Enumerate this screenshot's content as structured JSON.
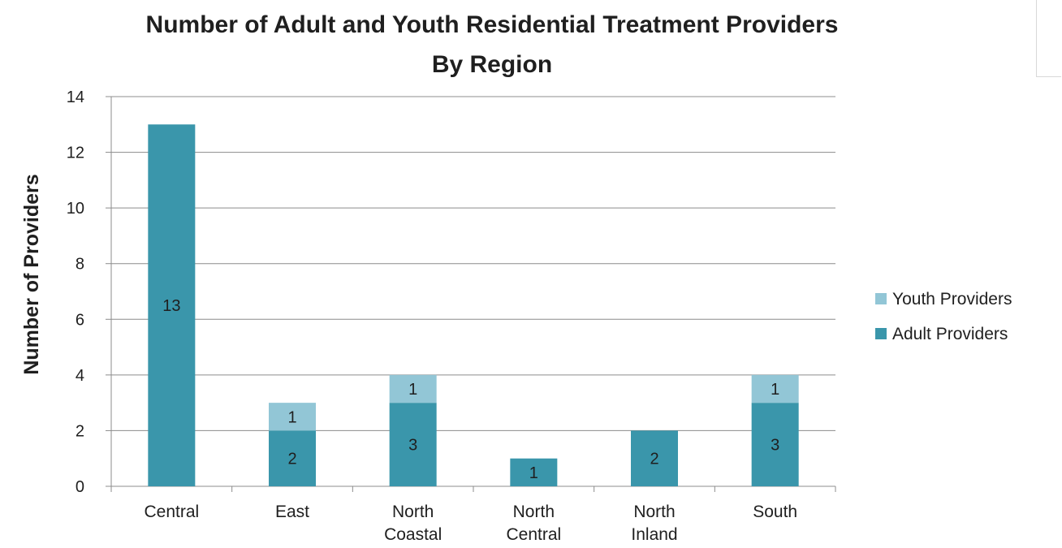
{
  "chart_data": {
    "type": "bar",
    "stacked": true,
    "title": "Number of Adult and Youth Residential Treatment Providers",
    "subtitle": "By Region",
    "xlabel": "",
    "ylabel": "Number of Providers",
    "ylim": [
      0,
      14
    ],
    "yticks": [
      "0",
      "2",
      "4",
      "6",
      "8",
      "10",
      "12",
      "14"
    ],
    "grid": true,
    "legend_position": "right",
    "categories": [
      [
        "Central"
      ],
      [
        "East"
      ],
      [
        "North",
        "Coastal"
      ],
      [
        "North",
        "Central"
      ],
      [
        "North",
        "Inland"
      ],
      [
        "South"
      ]
    ],
    "series": [
      {
        "name": "Adult Providers",
        "color": "#3a96ab",
        "values": [
          13,
          2,
          3,
          1,
          2,
          3
        ]
      },
      {
        "name": "Youth Providers",
        "color": "#92c6d6",
        "values": [
          0,
          1,
          1,
          0,
          0,
          1
        ]
      }
    ],
    "legend_order": [
      "Youth Providers",
      "Adult Providers"
    ]
  }
}
